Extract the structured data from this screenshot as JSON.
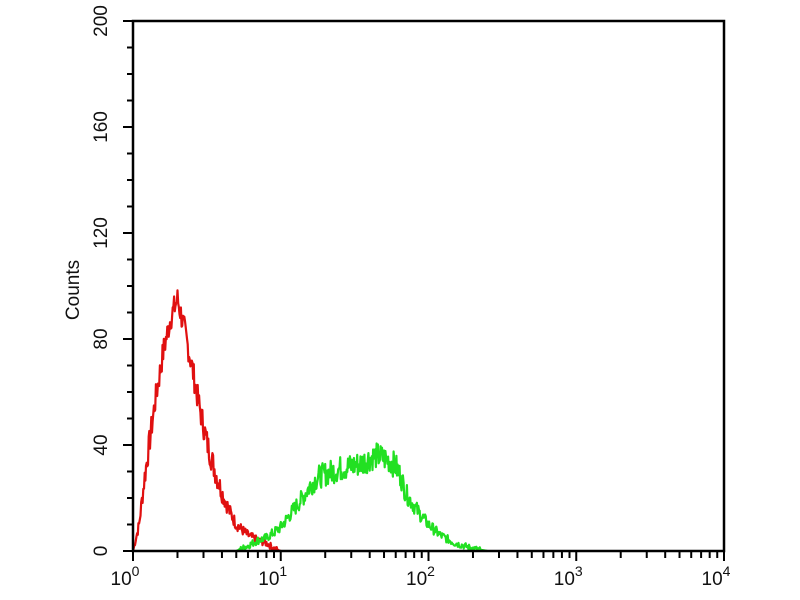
{
  "chart_data": {
    "type": "line",
    "title": "",
    "xlabel": "",
    "ylabel": "Counts",
    "x_scale": "log",
    "xlim": [
      1,
      10000
    ],
    "ylim": [
      0,
      200
    ],
    "grid": false,
    "x_ticks": [
      {
        "base": "10",
        "exp": "0"
      },
      {
        "base": "10",
        "exp": "1"
      },
      {
        "base": "10",
        "exp": "2"
      },
      {
        "base": "10",
        "exp": "3"
      },
      {
        "base": "10",
        "exp": "4"
      }
    ],
    "y_ticks": [
      "0",
      "40",
      "80",
      "120",
      "160",
      "200"
    ],
    "series": [
      {
        "color": "#e01010",
        "x": [
          1.0,
          1.1,
          1.2,
          1.4,
          1.6,
          1.8,
          2.0,
          2.2,
          2.5,
          2.8,
          3.2,
          3.6,
          4.0,
          4.5,
          5.0,
          6.0,
          7.0,
          8.0,
          9.0,
          10.0
        ],
        "y": [
          0,
          10,
          28,
          55,
          75,
          88,
          95,
          85,
          70,
          55,
          40,
          30,
          22,
          15,
          10,
          6,
          4,
          3,
          1,
          0
        ]
      },
      {
        "color": "#22e022",
        "x": [
          5,
          6,
          7,
          8,
          9,
          10,
          12,
          14,
          16,
          18,
          20,
          25,
          30,
          35,
          40,
          45,
          50,
          55,
          60,
          65,
          70,
          80,
          90,
          100,
          120,
          150,
          200,
          250
        ],
        "y": [
          0,
          2,
          4,
          5,
          7,
          9,
          15,
          20,
          25,
          28,
          29,
          31,
          32,
          33,
          35,
          36,
          35,
          34,
          32,
          28,
          22,
          17,
          13,
          10,
          6,
          3,
          1,
          0
        ]
      }
    ]
  }
}
